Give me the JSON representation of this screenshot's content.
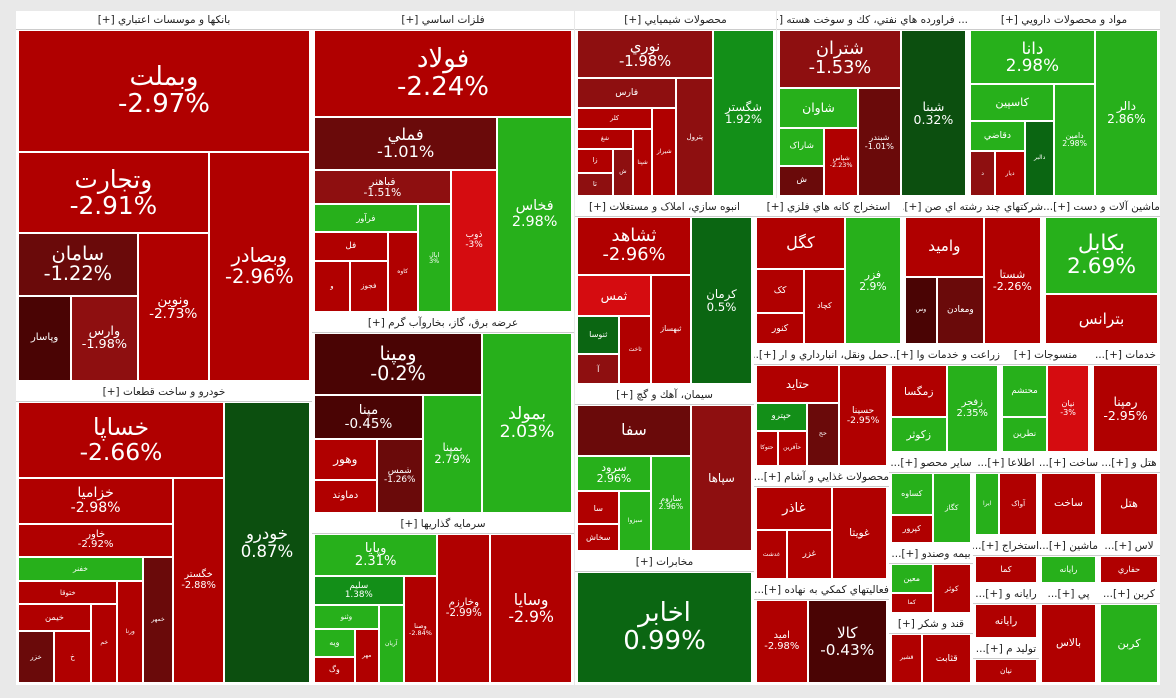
{
  "colors": {
    "r3": "#b00000",
    "r2": "#8e0f10",
    "r1": "#6a0a0a",
    "r0": "#4a0404",
    "rb": "#d50c10",
    "g3": "#27b01b",
    "g2": "#138f18",
    "g1": "#0b6612",
    "g0": "#0c4f0f"
  },
  "chart_data": {
    "type": "treemap",
    "sectors": [
      {
        "label": "بانکها و موسسات اعتباري [+]",
        "tiles": [
          {
            "name": "وبملت",
            "value": "-2.97%",
            "color": "r3"
          },
          {
            "name": "وبصادر",
            "value": "-2.96%",
            "color": "r3"
          },
          {
            "name": "وتجارت",
            "value": "-2.91%",
            "color": "r3"
          },
          {
            "name": "ونوين",
            "value": "-2.73%",
            "color": "r3"
          },
          {
            "name": "سامان",
            "value": "-1.22%",
            "color": "r1"
          },
          {
            "name": "وارس",
            "value": "-1.98%",
            "color": "r2"
          },
          {
            "name": "وپاسار",
            "value": "",
            "color": "r0"
          }
        ]
      },
      {
        "label": "فلزات اساسي [+]",
        "tiles": [
          {
            "name": "فولاد",
            "value": "-2.24%",
            "color": "r3"
          },
          {
            "name": "فخاس",
            "value": "2.98%",
            "color": "g3"
          },
          {
            "name": "فملي",
            "value": "-1.01%",
            "color": "r1"
          },
          {
            "name": "ذوب",
            "value": "-3%",
            "color": "rb"
          },
          {
            "name": "فباهنر",
            "value": "-1.51%",
            "color": "r2"
          },
          {
            "name": "اپال",
            "value": "3%",
            "color": "g3"
          },
          {
            "name": "فرآور",
            "value": "",
            "color": "g3"
          },
          {
            "name": "کاوه",
            "value": "",
            "color": "r3"
          },
          {
            "name": "فل",
            "value": "",
            "color": "r3"
          },
          {
            "name": "فجوز",
            "value": "",
            "color": "r3"
          },
          {
            "name": "و",
            "value": "",
            "color": "r3"
          }
        ]
      },
      {
        "label": "محصولات شيميايي [+]",
        "tiles": [
          {
            "name": "شگستر",
            "value": "1.92%",
            "color": "g2"
          },
          {
            "name": "نوري",
            "value": "-1.98%",
            "color": "r2"
          },
          {
            "name": "پترول",
            "value": "",
            "color": "r2"
          },
          {
            "name": "فارس",
            "value": "",
            "color": "r2"
          },
          {
            "name": "شيراز",
            "value": "",
            "color": "r3"
          },
          {
            "name": "کلر",
            "value": "",
            "color": "r3"
          },
          {
            "name": "شپنا",
            "value": "",
            "color": "r3"
          },
          {
            "name": "شغ",
            "value": "",
            "color": "r3"
          },
          {
            "name": "ش",
            "value": "",
            "color": "r2"
          },
          {
            "name": "زا",
            "value": "",
            "color": "r3"
          },
          {
            "name": "تا",
            "value": "",
            "color": "r2"
          }
        ]
      },
      {
        "label": "... فراورده هاي نفتي، كك و سوخت هسته [+]",
        "tiles": [
          {
            "name": "شبنا",
            "value": "0.32%",
            "color": "g0"
          },
          {
            "name": "شتران",
            "value": "-1.53%",
            "color": "r2"
          },
          {
            "name": "شبندر",
            "value": "-1.01%",
            "color": "r1"
          },
          {
            "name": "شاوان",
            "value": "",
            "color": "g3"
          },
          {
            "name": "شپاس",
            "value": "-2.23%",
            "color": "r3"
          },
          {
            "name": "شاراک",
            "value": "",
            "color": "g3"
          },
          {
            "name": "ش",
            "value": "",
            "color": "r1"
          }
        ]
      },
      {
        "label": "مواد و محصولات دارويي [+]",
        "tiles": [
          {
            "name": "دالر",
            "value": "2.86%",
            "color": "g3"
          },
          {
            "name": "دانا",
            "value": "2.98%",
            "color": "g3"
          },
          {
            "name": "دامین",
            "value": "2.98%",
            "color": "g3"
          },
          {
            "name": "کاسپين",
            "value": "",
            "color": "g3"
          },
          {
            "name": "دالبر",
            "value": "",
            "color": "g1"
          },
          {
            "name": "دقاضي",
            "value": "",
            "color": "g3"
          },
          {
            "name": "ديار",
            "value": "",
            "color": "r3"
          },
          {
            "name": "د",
            "value": "",
            "color": "r2"
          }
        ]
      },
      {
        "label": "خودرو و ساخت قطعات [+]",
        "tiles": [
          {
            "name": "خودرو",
            "value": "0.87%",
            "color": "g0"
          },
          {
            "name": "خساپا",
            "value": "-2.66%",
            "color": "r3"
          },
          {
            "name": "خگستر",
            "value": "-2.88%",
            "color": "r3"
          },
          {
            "name": "خزاميا",
            "value": "-2.98%",
            "color": "r3"
          },
          {
            "name": "خاور",
            "value": "-2.92%",
            "color": "r3"
          },
          {
            "name": "خمهر",
            "value": "",
            "color": "r1"
          },
          {
            "name": "خفنر",
            "value": "",
            "color": "g3"
          },
          {
            "name": "ورنا",
            "value": "",
            "color": "r3"
          },
          {
            "name": "ختوقا",
            "value": "",
            "color": "r3"
          },
          {
            "name": "خم",
            "value": "",
            "color": "r3"
          },
          {
            "name": "خيمن",
            "value": "",
            "color": "r3"
          },
          {
            "name": "خ",
            "value": "",
            "color": "r3"
          },
          {
            "name": "خزر",
            "value": "",
            "color": "r1"
          }
        ]
      },
      {
        "label": "عرضه برق، گاز، بخاروآب گرم [+]",
        "tiles": [
          {
            "name": "بمولد",
            "value": "2.03%",
            "color": "g3"
          },
          {
            "name": "ومپنا",
            "value": "-0.2%",
            "color": "r0"
          },
          {
            "name": "بمپنا",
            "value": "2.79%",
            "color": "g3"
          },
          {
            "name": "مپنا",
            "value": "-0.45%",
            "color": "r0"
          },
          {
            "name": "شمس",
            "value": "-1.26%",
            "color": "r1"
          },
          {
            "name": "وهور",
            "value": "",
            "color": "r3"
          },
          {
            "name": "دماوند",
            "value": "",
            "color": "r3"
          }
        ]
      },
      {
        "label": "سرمايه گذاريها [+]",
        "tiles": [
          {
            "name": "وسايا",
            "value": "-2.9%",
            "color": "r3"
          },
          {
            "name": "وخارزم",
            "value": "-2.99%",
            "color": "r3"
          },
          {
            "name": "وپايا",
            "value": "2.31%",
            "color": "g3"
          },
          {
            "name": "وصنا",
            "value": "-2.84%",
            "color": "r3"
          },
          {
            "name": "سلیم",
            "value": "1.38%",
            "color": "g2"
          },
          {
            "name": "آريان",
            "value": "",
            "color": "g3"
          },
          {
            "name": "وثنو",
            "value": "",
            "color": "g3"
          },
          {
            "name": "مهر",
            "value": "",
            "color": "r3"
          },
          {
            "name": "ويه",
            "value": "",
            "color": "g3"
          },
          {
            "name": "وگ",
            "value": "",
            "color": "r3"
          }
        ]
      },
      {
        "label": "انبوه سازي، املاک و مستغلات [+]",
        "tiles": [
          {
            "name": "کرمان",
            "value": "0.5%",
            "color": "g1"
          },
          {
            "name": "ثشاهد",
            "value": "-2.96%",
            "color": "r3"
          },
          {
            "name": "ثبهساز",
            "value": "",
            "color": "r3"
          },
          {
            "name": "ثمس",
            "value": "",
            "color": "rb"
          },
          {
            "name": "ثاخت",
            "value": "",
            "color": "r3"
          },
          {
            "name": "ثنوسا",
            "value": "",
            "color": "g1"
          },
          {
            "name": "آ",
            "value": "",
            "color": "r2"
          }
        ]
      },
      {
        "label": "استخراج كانه هاي فلزي [+]",
        "tiles": [
          {
            "name": "فزر",
            "value": "2.9%",
            "color": "g3"
          },
          {
            "name": "کگل",
            "value": "",
            "color": "r3"
          },
          {
            "name": "کچاد",
            "value": "",
            "color": "r3"
          },
          {
            "name": "کک",
            "value": "",
            "color": "r3"
          },
          {
            "name": "کنور",
            "value": "",
            "color": "r3"
          }
        ]
      },
      {
        "label": "شرکتهاي چند رشته اي صن [+]...",
        "tiles": [
          {
            "name": "شستا",
            "value": "-2.26%",
            "color": "r3"
          },
          {
            "name": "وامید",
            "value": "",
            "color": "r3"
          },
          {
            "name": "ومعادن",
            "value": "",
            "color": "r1"
          },
          {
            "name": "وس",
            "value": "",
            "color": "r0"
          }
        ]
      },
      {
        "label": "ماشين آلات و دست [+]...",
        "tiles": [
          {
            "name": "بکابل",
            "value": "2.69%",
            "color": "g3"
          },
          {
            "name": "بترانس",
            "value": "",
            "color": "r3"
          }
        ]
      },
      {
        "label": "سيمان، آهك و گچ [+]",
        "tiles": [
          {
            "name": "سپاها",
            "value": "",
            "color": "r2"
          },
          {
            "name": "سفا",
            "value": "",
            "color": "r1"
          },
          {
            "name": "ساروم",
            "value": "2.96%",
            "color": "g3"
          },
          {
            "name": "سرود",
            "value": "2.96%",
            "color": "g3"
          },
          {
            "name": "سبزوا",
            "value": "",
            "color": "g3"
          },
          {
            "name": "سا",
            "value": "",
            "color": "r3"
          },
          {
            "name": "سخاش",
            "value": "",
            "color": "r3"
          }
        ]
      },
      {
        "label": "حمل ونقل، انبارداري و ار [+]...",
        "tiles": [
          {
            "name": "حسينا",
            "value": "-2.95%",
            "color": "r3"
          },
          {
            "name": "حتايد",
            "value": "",
            "color": "r3"
          },
          {
            "name": "حج",
            "value": "",
            "color": "r1"
          },
          {
            "name": "حپترو",
            "value": "",
            "color": "g2"
          },
          {
            "name": "حآفرين",
            "value": "",
            "color": "r3"
          },
          {
            "name": "حتوكا",
            "value": "",
            "color": "r3"
          }
        ]
      },
      {
        "label": "زراعت و خدمات وا [+]...",
        "tiles": [
          {
            "name": "زفجر",
            "value": "2.35%",
            "color": "g3"
          },
          {
            "name": "زمگسا",
            "value": "",
            "color": "r3"
          },
          {
            "name": "زکوثر",
            "value": "",
            "color": "g3"
          }
        ]
      },
      {
        "label": "منسوجات [+]",
        "tiles": [
          {
            "name": "نيان",
            "value": "-3%",
            "color": "rb"
          },
          {
            "name": "محتشم",
            "value": "",
            "color": "g3"
          },
          {
            "name": "نطرين",
            "value": "",
            "color": "g3"
          }
        ]
      },
      {
        "label": "خدمات [+]...",
        "tiles": [
          {
            "name": "رمپنا",
            "value": "-2.95%",
            "color": "r3"
          }
        ]
      },
      {
        "label": "محصولات غذايي و آشام [+]...",
        "tiles": [
          {
            "name": "غويتا",
            "value": "",
            "color": "r3"
          },
          {
            "name": "غاذر",
            "value": "",
            "color": "r3"
          },
          {
            "name": "غزر",
            "value": "",
            "color": "r3"
          },
          {
            "name": "غدشت",
            "value": "",
            "color": "r3"
          }
        ]
      },
      {
        "label": "مخابرات [+]",
        "tiles": [
          {
            "name": "اخابر",
            "value": "0.99%",
            "color": "g1"
          }
        ]
      },
      {
        "label": "فعاليتهاي كمكي به نهاده [+]...",
        "tiles": [
          {
            "name": "کالا",
            "value": "-0.43%",
            "color": "r0"
          },
          {
            "name": "اميد",
            "value": "-2.98%",
            "color": "r3"
          }
        ]
      },
      {
        "label": "ساير محصو [+]...",
        "tiles": [
          {
            "name": "کگاز",
            "value": "",
            "color": "g3"
          },
          {
            "name": "کساوه",
            "value": "",
            "color": "g3"
          },
          {
            "name": "کپرور",
            "value": "",
            "color": "r3"
          }
        ]
      },
      {
        "label": "بيمه وصندو [+]...",
        "tiles": [
          {
            "name": "کوثر",
            "value": "",
            "color": "r3"
          },
          {
            "name": "معين",
            "value": "",
            "color": "g3"
          },
          {
            "name": "کما",
            "value": "",
            "color": "r3"
          }
        ]
      },
      {
        "label": "قند و شكر [+]",
        "tiles": [
          {
            "name": "قثابت",
            "value": "",
            "color": "r3"
          },
          {
            "name": "قشير",
            "value": "",
            "color": "r3"
          }
        ]
      },
      {
        "label": "اطلاعا [+]...",
        "tiles": [
          {
            "name": "آواک",
            "value": "",
            "color": "r3"
          },
          {
            "name": "ايرا",
            "value": "",
            "color": "g3"
          }
        ]
      },
      {
        "label": "ساخت [+]...",
        "tiles": [
          {
            "name": "ساخت",
            "value": "",
            "color": "r3"
          }
        ]
      },
      {
        "label": "هتل و [+]...",
        "tiles": [
          {
            "name": "هتل",
            "value": "",
            "color": "r3"
          }
        ]
      },
      {
        "label": "استخراج [+]...",
        "tiles": [
          {
            "name": "کما",
            "value": "",
            "color": "r3"
          }
        ]
      },
      {
        "label": "ماشين [+]...",
        "tiles": [
          {
            "name": "رايانه",
            "value": "",
            "color": "g3"
          }
        ]
      },
      {
        "label": "لاس [+]...",
        "tiles": [
          {
            "name": "حفاري",
            "value": "",
            "color": "r3"
          }
        ]
      },
      {
        "label": "رايانه و [+]...",
        "tiles": [
          {
            "name": "رايانه",
            "value": "",
            "color": "r3"
          }
        ]
      },
      {
        "label": "توليد م [+]...",
        "tiles": [
          {
            "name": "نيان",
            "value": "",
            "color": "r3"
          }
        ]
      },
      {
        "label": "پي [+]...",
        "tiles": [
          {
            "name": "بالاس",
            "value": "",
            "color": "r3"
          }
        ]
      },
      {
        "label": "کربن [+]...",
        "tiles": [
          {
            "name": "کربن",
            "value": "",
            "color": "g3"
          }
        ]
      }
    ]
  }
}
